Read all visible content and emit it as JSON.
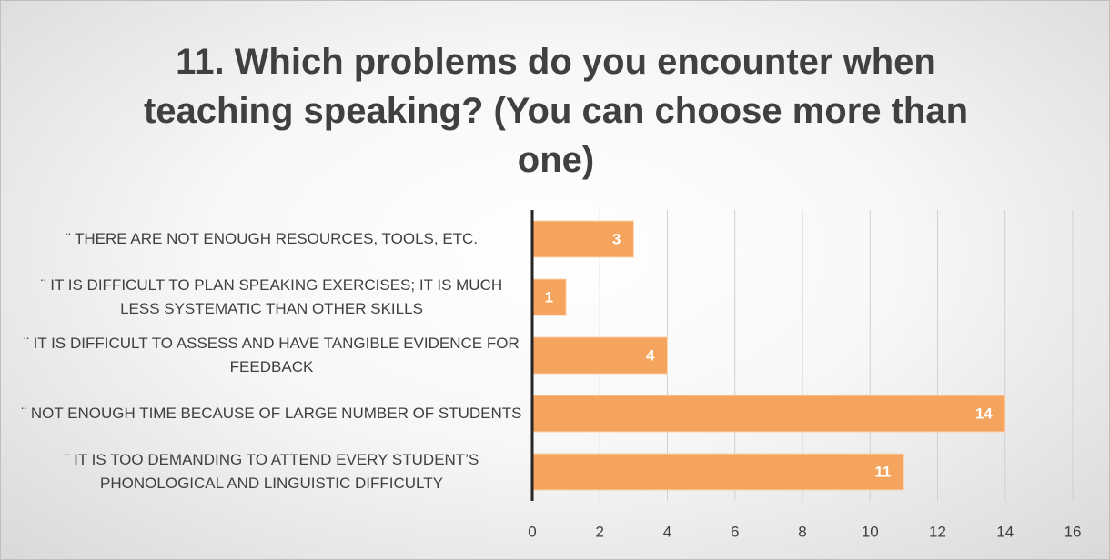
{
  "chart_data": {
    "type": "bar",
    "orientation": "horizontal",
    "title": "11. Which problems do you encounter when teaching speaking? (You can choose more than one)",
    "categories": [
      "¨ THERE ARE NOT ENOUGH RESOURCES, TOOLS, ETC.",
      "¨ IT IS DIFFICULT TO PLAN SPEAKING EXERCISES; IT IS MUCH LESS SYSTEMATIC THAN OTHER SKILLS",
      "¨ IT IS DIFFICULT TO ASSESS AND HAVE TANGIBLE EVIDENCE FOR FEEDBACK",
      "¨ NOT ENOUGH TIME BECAUSE OF LARGE NUMBER OF STUDENTS",
      "¨ IT IS TOO DEMANDING TO ATTEND EVERY STUDENT’S PHONOLOGICAL AND LINGUISTIC DIFFICULTY"
    ],
    "values": [
      3,
      1,
      4,
      14,
      11
    ],
    "color": "#f5a45d",
    "xlim": [
      0,
      16
    ],
    "xticks": [
      0,
      2,
      4,
      6,
      8,
      10,
      12,
      14,
      16
    ],
    "grid": true
  }
}
